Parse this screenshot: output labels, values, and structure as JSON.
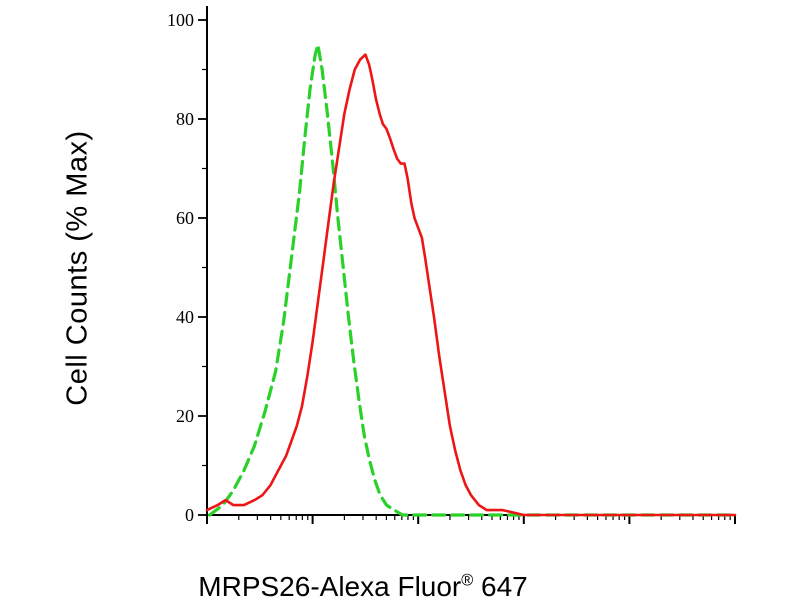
{
  "chart_data": {
    "type": "line",
    "subtype": "flow-cytometry-histogram",
    "xlabel_main": "MRPS26-Alexa Fluor",
    "xlabel_sup": "®",
    "xlabel_suffix": " 647",
    "ylabel": "Cell Counts (% Max)",
    "ylim": [
      0,
      100
    ],
    "yticks": [
      0,
      20,
      40,
      60,
      80,
      100
    ],
    "y_minor_step": 10,
    "x_axis": {
      "scale": "log",
      "decades": 5,
      "tick_labels": "none"
    },
    "grid": false,
    "legend": "none",
    "background": "#ffffff",
    "axis_color": "#000000",
    "series": [
      {
        "id": "green-dashed",
        "style": "dashed",
        "color": "#29d129",
        "points": [
          [
            0.005,
            0
          ],
          [
            0.03,
            2
          ],
          [
            0.05,
            5
          ],
          [
            0.07,
            9
          ],
          [
            0.09,
            14
          ],
          [
            0.11,
            21
          ],
          [
            0.13,
            29
          ],
          [
            0.145,
            39
          ],
          [
            0.16,
            52
          ],
          [
            0.175,
            65
          ],
          [
            0.185,
            76
          ],
          [
            0.195,
            86
          ],
          [
            0.205,
            93
          ],
          [
            0.21,
            95
          ],
          [
            0.218,
            90
          ],
          [
            0.228,
            81
          ],
          [
            0.238,
            71
          ],
          [
            0.248,
            60
          ],
          [
            0.258,
            50
          ],
          [
            0.268,
            40
          ],
          [
            0.278,
            31
          ],
          [
            0.288,
            23
          ],
          [
            0.298,
            16
          ],
          [
            0.308,
            11
          ],
          [
            0.318,
            7
          ],
          [
            0.328,
            4
          ],
          [
            0.34,
            2
          ],
          [
            0.355,
            1
          ],
          [
            0.37,
            0
          ],
          [
            1,
            0
          ]
        ]
      },
      {
        "id": "red-solid",
        "style": "solid",
        "color": "#ed1515",
        "points": [
          [
            0,
            1
          ],
          [
            0.02,
            2
          ],
          [
            0.035,
            3
          ],
          [
            0.05,
            2
          ],
          [
            0.07,
            2
          ],
          [
            0.09,
            3
          ],
          [
            0.105,
            4
          ],
          [
            0.12,
            6
          ],
          [
            0.135,
            9
          ],
          [
            0.15,
            12
          ],
          [
            0.16,
            15
          ],
          [
            0.17,
            18
          ],
          [
            0.18,
            22
          ],
          [
            0.19,
            28
          ],
          [
            0.2,
            35
          ],
          [
            0.21,
            43
          ],
          [
            0.22,
            51
          ],
          [
            0.23,
            59
          ],
          [
            0.24,
            67
          ],
          [
            0.25,
            74
          ],
          [
            0.26,
            81
          ],
          [
            0.27,
            86
          ],
          [
            0.28,
            90
          ],
          [
            0.29,
            92
          ],
          [
            0.3,
            93
          ],
          [
            0.307,
            91
          ],
          [
            0.313,
            88
          ],
          [
            0.32,
            84
          ],
          [
            0.327,
            81
          ],
          [
            0.333,
            79
          ],
          [
            0.34,
            78
          ],
          [
            0.347,
            76
          ],
          [
            0.353,
            74
          ],
          [
            0.36,
            72
          ],
          [
            0.367,
            71
          ],
          [
            0.374,
            71
          ],
          [
            0.38,
            68
          ],
          [
            0.387,
            63
          ],
          [
            0.393,
            60
          ],
          [
            0.4,
            58
          ],
          [
            0.407,
            56
          ],
          [
            0.413,
            52
          ],
          [
            0.42,
            47
          ],
          [
            0.43,
            40
          ],
          [
            0.44,
            32
          ],
          [
            0.45,
            25
          ],
          [
            0.46,
            18
          ],
          [
            0.47,
            13
          ],
          [
            0.48,
            9
          ],
          [
            0.49,
            6
          ],
          [
            0.5,
            4
          ],
          [
            0.515,
            2
          ],
          [
            0.53,
            1
          ],
          [
            0.56,
            1
          ],
          [
            0.6,
            0
          ],
          [
            1,
            0
          ]
        ]
      }
    ]
  }
}
